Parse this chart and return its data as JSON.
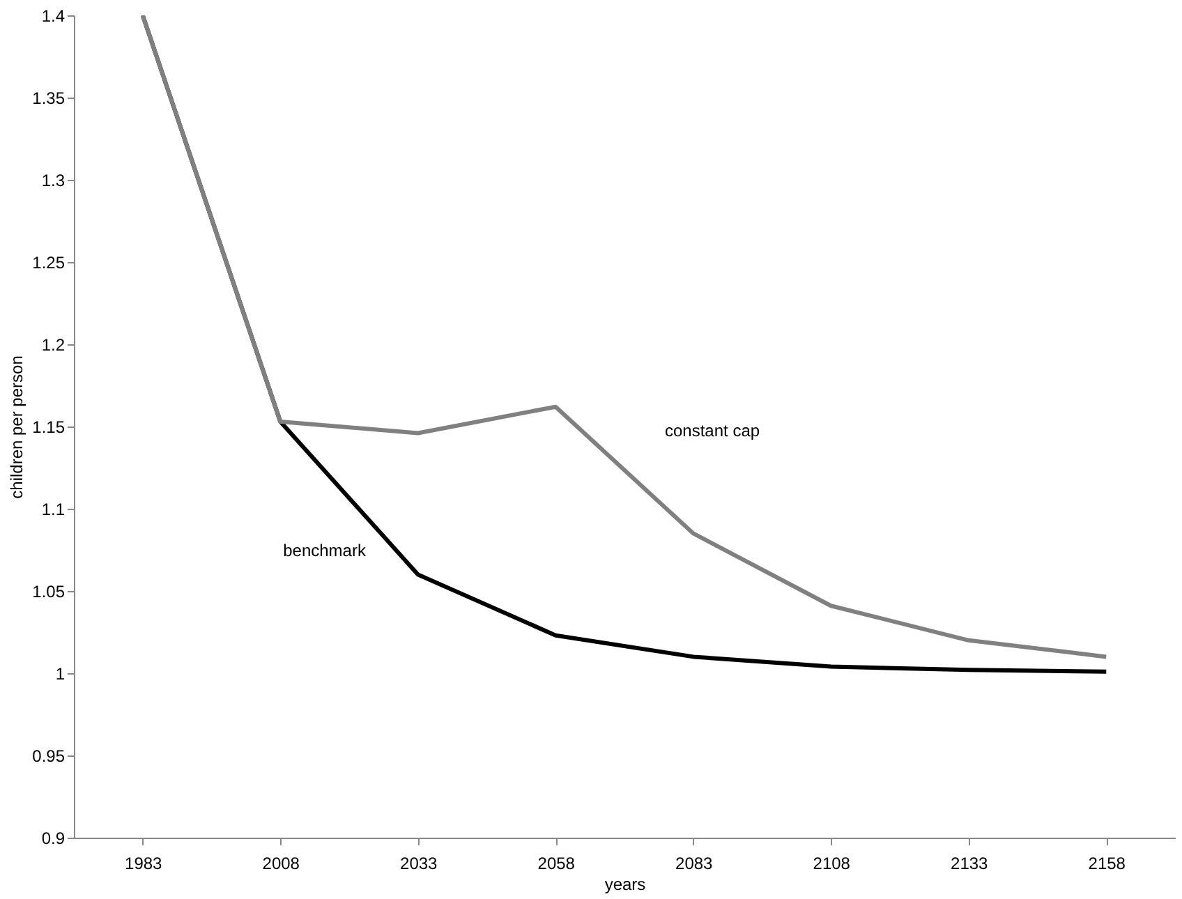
{
  "chart_data": {
    "type": "line",
    "xlabel": "years",
    "ylabel": "children per person",
    "categories": [
      "1983",
      "2008",
      "2033",
      "2058",
      "2083",
      "2108",
      "2133",
      "2158"
    ],
    "series": [
      {
        "name": "benchmark",
        "color": "#000000",
        "values": [
          1.4,
          1.153,
          1.06,
          1.023,
          1.01,
          1.004,
          1.002,
          1.001
        ]
      },
      {
        "name": "constant cap",
        "color": "#808080",
        "values": [
          1.4,
          1.153,
          1.146,
          1.162,
          1.085,
          1.041,
          1.02,
          1.01
        ]
      }
    ],
    "ylim": [
      0.9,
      1.4
    ],
    "yticks": [
      0.9,
      0.95,
      1,
      1.05,
      1.1,
      1.15,
      1.2,
      1.25,
      1.3,
      1.35,
      1.4
    ],
    "grid": false,
    "legend": false,
    "marker": "none",
    "line_style": "solid"
  }
}
